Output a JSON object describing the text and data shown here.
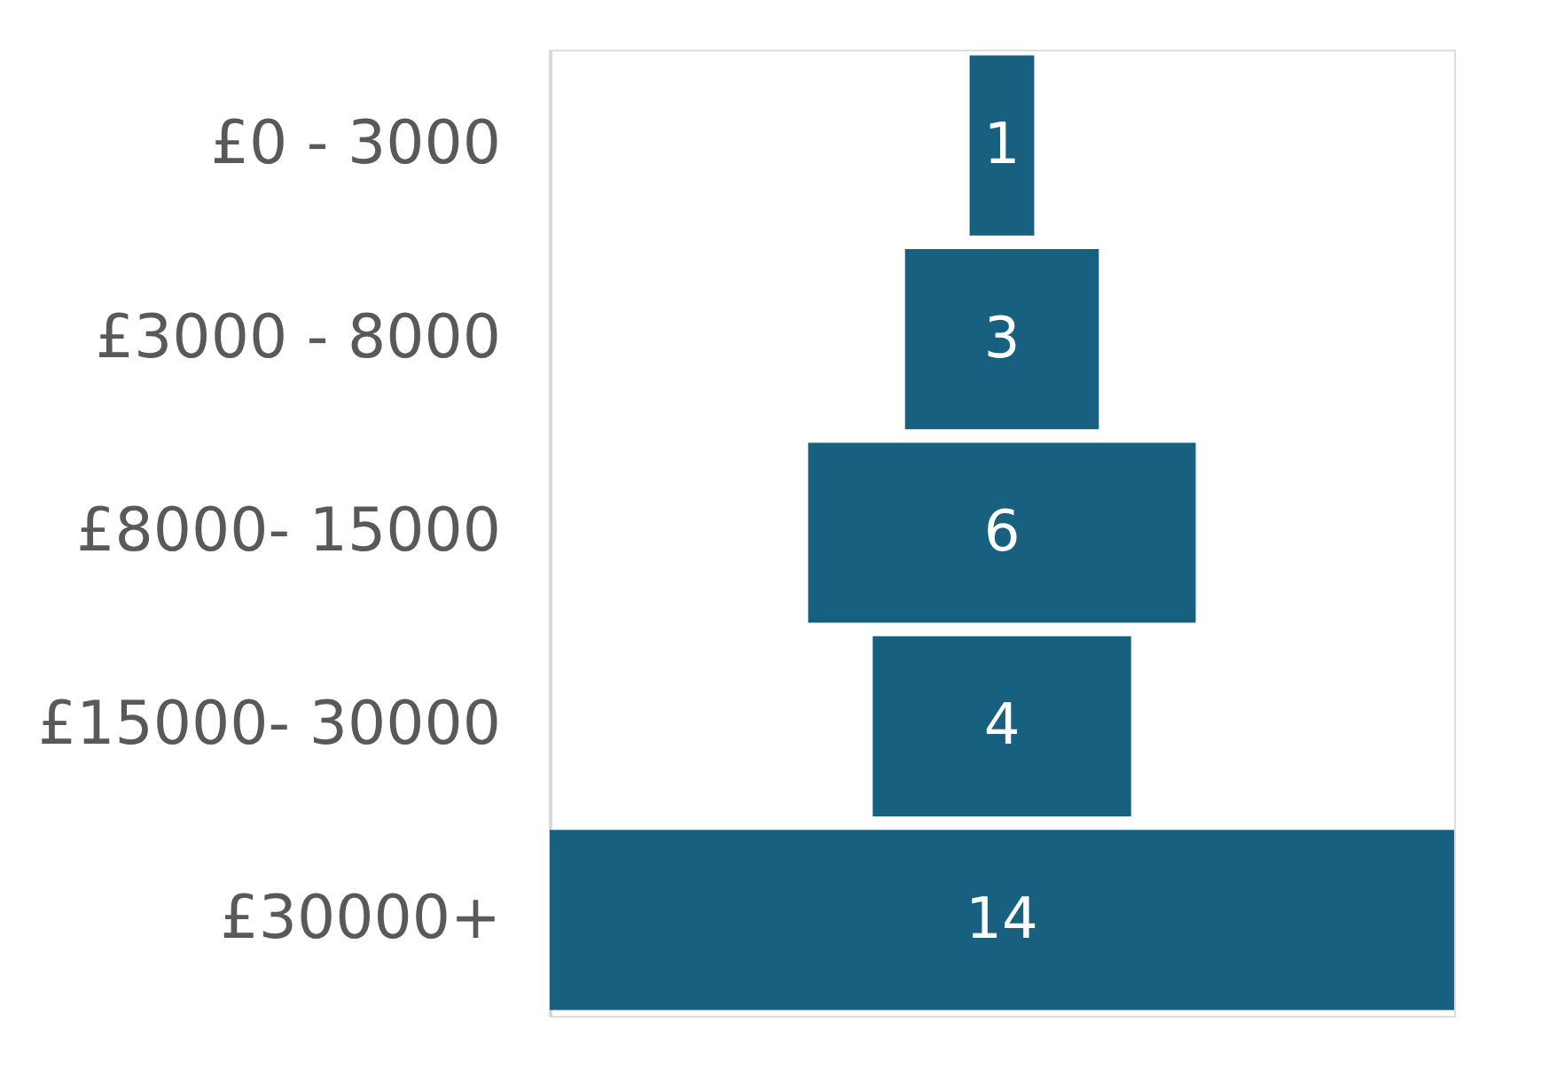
{
  "chart_data": {
    "type": "other",
    "categories": [
      "£0 - 3000",
      "£3000 - 8000",
      "£8000- 15000",
      "£15000- 30000",
      "£30000+"
    ],
    "values": [
      1,
      3,
      6,
      4,
      14
    ],
    "color": "#17607f",
    "data_labels": true
  }
}
